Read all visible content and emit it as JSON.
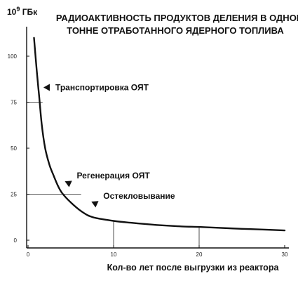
{
  "chart_data": {
    "type": "line",
    "title_lines": [
      "РАДИОАКТИВНОСТЬ ПРОДУКТОВ  ДЕЛЕНИЯ В ОДНОЙ",
      "ТОННЕ ОТРАБОТАННОГО ЯДЕРНОГО ТОПЛИВА"
    ],
    "ylabel_base": "10",
    "ylabel_exp": "9",
    "ylabel_unit": " ГБк",
    "xlabel": "Кол-во лет после выгрузки из  реактора",
    "xlim": [
      0,
      30
    ],
    "ylim": [
      0,
      110
    ],
    "grid": false,
    "x_ticks": [
      0,
      10,
      20,
      30
    ],
    "y_ticks": [
      0,
      25,
      50,
      75,
      100
    ],
    "series": [
      {
        "x": [
          0.7,
          1.0,
          1.3,
          1.6,
          2.0,
          2.5,
          3.0,
          3.5,
          4.0,
          5.0,
          6.0,
          7.0,
          8.0,
          10.0,
          12.0,
          15.0,
          18.0,
          20.0,
          22.0,
          25.0,
          28.0,
          30.0
        ],
        "y": [
          110,
          93,
          78,
          63,
          50,
          41,
          35,
          29.5,
          25.5,
          20.5,
          16.5,
          13.5,
          12,
          10.5,
          9.5,
          8.3,
          7.5,
          7.2,
          6.8,
          6.2,
          5.7,
          5.3
        ]
      }
    ],
    "reference_lines": [
      {
        "y": 25,
        "x_end": 6.2
      },
      {
        "y": 75,
        "x_end": 1.7
      }
    ],
    "annotations": [
      {
        "text": "Транспортировка ОЯТ",
        "x": 1.8,
        "y": 83
      },
      {
        "text": "Регенерация ОЯТ",
        "x": 4.3,
        "y": 32
      },
      {
        "text": "Остекловывание",
        "x": 7.4,
        "y": 21
      }
    ]
  }
}
